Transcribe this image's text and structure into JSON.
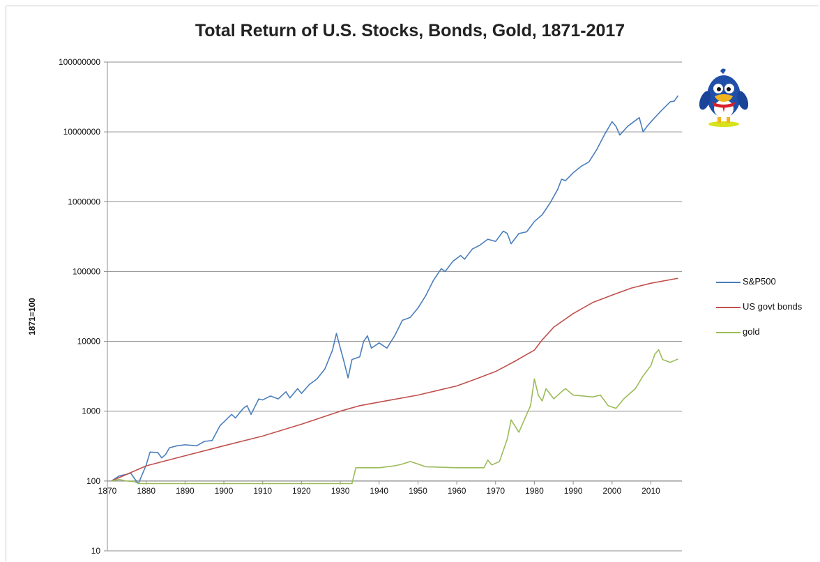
{
  "chart_data": {
    "type": "line",
    "title": "Total Return of U.S. Stocks, Bonds, Gold, 1871-2017",
    "xlabel": "",
    "ylabel": "1871=100",
    "yscale": "log",
    "xlim": [
      1870,
      2018
    ],
    "ylim": [
      10,
      100000000
    ],
    "xticks": [
      1870,
      1880,
      1890,
      1900,
      1910,
      1920,
      1930,
      1940,
      1950,
      1960,
      1970,
      1980,
      1990,
      2000,
      2010
    ],
    "xtick_labels": [
      "1870",
      "1880",
      "1890",
      "1900",
      "1910",
      "1920",
      "1930",
      "1940",
      "1950",
      "1960",
      "1970",
      "1980",
      "1990",
      "2000",
      "2010"
    ],
    "yticks": [
      10,
      100,
      1000,
      10000,
      100000,
      1000000,
      10000000,
      100000000
    ],
    "ytick_labels": [
      "10",
      "100",
      "1000",
      "10000",
      "100000",
      "1000000",
      "10000000",
      "100000000"
    ],
    "grid": "horizontal",
    "legend_position": "right",
    "series": [
      {
        "name": "S&P500",
        "color": "#4a7ebb",
        "points": [
          [
            1871,
            100
          ],
          [
            1873,
            118
          ],
          [
            1875,
            125
          ],
          [
            1876,
            130
          ],
          [
            1877,
            108
          ],
          [
            1878,
            92
          ],
          [
            1880,
            170
          ],
          [
            1881,
            260
          ],
          [
            1883,
            255
          ],
          [
            1884,
            215
          ],
          [
            1885,
            240
          ],
          [
            1886,
            300
          ],
          [
            1888,
            320
          ],
          [
            1890,
            330
          ],
          [
            1893,
            320
          ],
          [
            1895,
            370
          ],
          [
            1897,
            380
          ],
          [
            1899,
            620
          ],
          [
            1900,
            700
          ],
          [
            1902,
            900
          ],
          [
            1903,
            800
          ],
          [
            1905,
            1100
          ],
          [
            1906,
            1200
          ],
          [
            1907,
            900
          ],
          [
            1909,
            1500
          ],
          [
            1910,
            1450
          ],
          [
            1912,
            1650
          ],
          [
            1914,
            1500
          ],
          [
            1916,
            1900
          ],
          [
            1917,
            1550
          ],
          [
            1919,
            2100
          ],
          [
            1920,
            1800
          ],
          [
            1922,
            2400
          ],
          [
            1924,
            2900
          ],
          [
            1926,
            4000
          ],
          [
            1928,
            7500
          ],
          [
            1929,
            13000
          ],
          [
            1930,
            8000
          ],
          [
            1931,
            5000
          ],
          [
            1932,
            3000
          ],
          [
            1933,
            5500
          ],
          [
            1935,
            6000
          ],
          [
            1936,
            10000
          ],
          [
            1937,
            12000
          ],
          [
            1938,
            8000
          ],
          [
            1940,
            9500
          ],
          [
            1942,
            8000
          ],
          [
            1944,
            12000
          ],
          [
            1946,
            20000
          ],
          [
            1948,
            22000
          ],
          [
            1950,
            30000
          ],
          [
            1952,
            45000
          ],
          [
            1954,
            75000
          ],
          [
            1956,
            110000
          ],
          [
            1957,
            100000
          ],
          [
            1959,
            140000
          ],
          [
            1961,
            170000
          ],
          [
            1962,
            150000
          ],
          [
            1964,
            210000
          ],
          [
            1966,
            240000
          ],
          [
            1968,
            290000
          ],
          [
            1970,
            270000
          ],
          [
            1972,
            380000
          ],
          [
            1973,
            350000
          ],
          [
            1974,
            250000
          ],
          [
            1976,
            350000
          ],
          [
            1978,
            370000
          ],
          [
            1980,
            520000
          ],
          [
            1982,
            650000
          ],
          [
            1984,
            950000
          ],
          [
            1986,
            1500000
          ],
          [
            1987,
            2100000
          ],
          [
            1988,
            2000000
          ],
          [
            1990,
            2600000
          ],
          [
            1992,
            3200000
          ],
          [
            1994,
            3700000
          ],
          [
            1996,
            5500000
          ],
          [
            1998,
            9000000
          ],
          [
            2000,
            14000000
          ],
          [
            2001,
            12000000
          ],
          [
            2002,
            9000000
          ],
          [
            2004,
            12000000
          ],
          [
            2007,
            16000000
          ],
          [
            2008,
            10000000
          ],
          [
            2009,
            12000000
          ],
          [
            2011,
            16000000
          ],
          [
            2013,
            21000000
          ],
          [
            2015,
            27000000
          ],
          [
            2016,
            27500000
          ],
          [
            2017,
            33000000
          ]
        ]
      },
      {
        "name": "US govt bonds",
        "color": "#c0504d",
        "points": [
          [
            1871,
            100
          ],
          [
            1880,
            165
          ],
          [
            1890,
            230
          ],
          [
            1900,
            320
          ],
          [
            1910,
            440
          ],
          [
            1920,
            650
          ],
          [
            1930,
            1000
          ],
          [
            1935,
            1200
          ],
          [
            1940,
            1350
          ],
          [
            1950,
            1700
          ],
          [
            1960,
            2300
          ],
          [
            1965,
            2900
          ],
          [
            1970,
            3700
          ],
          [
            1975,
            5200
          ],
          [
            1980,
            7500
          ],
          [
            1982,
            10500
          ],
          [
            1985,
            16000
          ],
          [
            1990,
            25000
          ],
          [
            1995,
            36000
          ],
          [
            2000,
            46000
          ],
          [
            2005,
            58000
          ],
          [
            2010,
            68000
          ],
          [
            2017,
            80000
          ]
        ]
      },
      {
        "name": "gold",
        "color": "#9bbb59",
        "points": [
          [
            1871,
            100
          ],
          [
            1873,
            105
          ],
          [
            1875,
            100
          ],
          [
            1877,
            98
          ],
          [
            1878,
            92
          ],
          [
            1900,
            92
          ],
          [
            1933,
            92
          ],
          [
            1934,
            155
          ],
          [
            1940,
            155
          ],
          [
            1944,
            165
          ],
          [
            1946,
            175
          ],
          [
            1948,
            190
          ],
          [
            1950,
            175
          ],
          [
            1952,
            160
          ],
          [
            1960,
            155
          ],
          [
            1967,
            155
          ],
          [
            1968,
            200
          ],
          [
            1969,
            170
          ],
          [
            1971,
            190
          ],
          [
            1973,
            400
          ],
          [
            1974,
            750
          ],
          [
            1976,
            500
          ],
          [
            1978,
            900
          ],
          [
            1979,
            1200
          ],
          [
            1980,
            2900
          ],
          [
            1981,
            1700
          ],
          [
            1982,
            1400
          ],
          [
            1983,
            2100
          ],
          [
            1985,
            1500
          ],
          [
            1987,
            1900
          ],
          [
            1988,
            2100
          ],
          [
            1990,
            1700
          ],
          [
            1995,
            1600
          ],
          [
            1997,
            1700
          ],
          [
            1999,
            1200
          ],
          [
            2001,
            1100
          ],
          [
            2003,
            1500
          ],
          [
            2006,
            2100
          ],
          [
            2008,
            3200
          ],
          [
            2010,
            4500
          ],
          [
            2011,
            6500
          ],
          [
            2012,
            7600
          ],
          [
            2013,
            5500
          ],
          [
            2015,
            5000
          ],
          [
            2017,
            5600
          ]
        ]
      }
    ]
  },
  "decoration": {
    "mascot_icon": "bird-mascot-icon"
  }
}
